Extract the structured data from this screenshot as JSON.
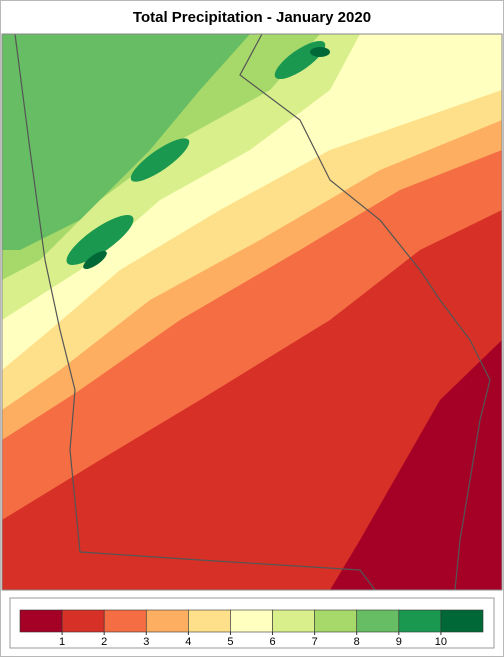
{
  "chart_data": {
    "type": "choropleth-map",
    "title": "Total Precipitation - January 2020",
    "colorbar": {
      "colors": [
        "#a50026",
        "#d73027",
        "#f46d43",
        "#fdae61",
        "#fee08b",
        "#ffffbf",
        "#d9ef8b",
        "#a6d96a",
        "#66bd63",
        "#1a9850",
        "#006837"
      ],
      "ticks": [
        1,
        2,
        3,
        4,
        5,
        6,
        7,
        8,
        9,
        10
      ]
    }
  }
}
